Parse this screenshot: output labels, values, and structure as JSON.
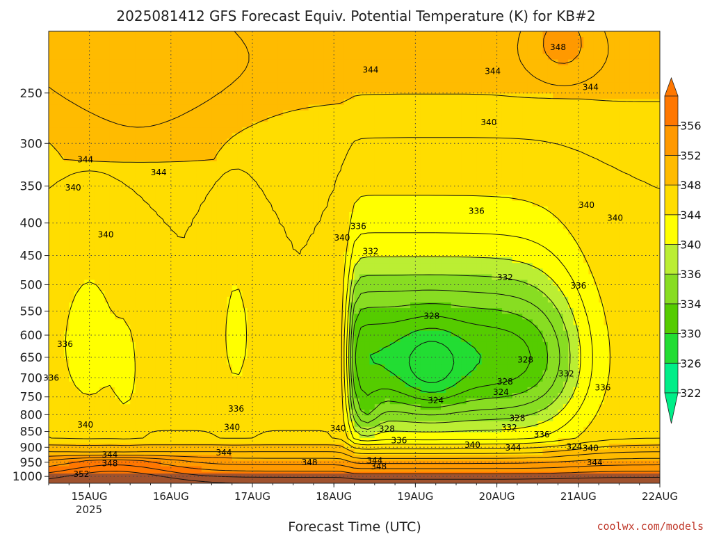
{
  "chart_data": {
    "type": "heatmap",
    "title": "2025081412 GFS Forecast Equiv. Potential Temperature (K) for KB#2",
    "xlabel": "Forecast Time (UTC)",
    "ylabel": "",
    "credit": "coolwx.com/models",
    "y_axis": {
      "scale": "log-pressure",
      "ticks": [
        "250",
        "300",
        "350",
        "400",
        "450",
        "500",
        "550",
        "600",
        "650",
        "700",
        "750",
        "800",
        "850",
        "900",
        "950",
        "1000"
      ],
      "range": [
        200,
        1025
      ]
    },
    "x_axis": {
      "ticks": [
        "15AUG",
        "16AUG",
        "17AUG",
        "18AUG",
        "19AUG",
        "20AUG",
        "21AUG",
        "22AUG"
      ],
      "first_tick_year": "2025",
      "range_days": [
        14.5,
        22.0
      ]
    },
    "colorbar": {
      "levels": [
        "322",
        "326",
        "330",
        "334",
        "336",
        "340",
        "344",
        "348",
        "352",
        "356"
      ],
      "colors": [
        "#00ee88",
        "#22dd33",
        "#55cc00",
        "#88dd22",
        "#bbee33",
        "#ffff00",
        "#ffdd00",
        "#ffbb00",
        "#ff9900",
        "#ff7700"
      ]
    },
    "contour_labels": [
      {
        "text": "348",
        "x": 18.55,
        "p": 965
      },
      {
        "text": "344",
        "x": 21.2,
        "p": 950
      },
      {
        "text": "348",
        "x": 20.75,
        "p": 212
      },
      {
        "text": "344",
        "x": 19.95,
        "p": 231
      },
      {
        "text": "344",
        "x": 21.15,
        "p": 245
      },
      {
        "text": "344",
        "x": 18.45,
        "p": 230
      },
      {
        "text": "340",
        "x": 19.9,
        "p": 278
      },
      {
        "text": "344",
        "x": 14.95,
        "p": 318
      },
      {
        "text": "344",
        "x": 15.85,
        "p": 333
      },
      {
        "text": "340",
        "x": 14.8,
        "p": 352
      },
      {
        "text": "336",
        "x": 18.3,
        "p": 405
      },
      {
        "text": "340",
        "x": 18.1,
        "p": 422
      },
      {
        "text": "336",
        "x": 19.75,
        "p": 383
      },
      {
        "text": "340",
        "x": 21.1,
        "p": 375
      },
      {
        "text": "340",
        "x": 21.45,
        "p": 393
      },
      {
        "text": "340",
        "x": 15.2,
        "p": 417
      },
      {
        "text": "332",
        "x": 18.45,
        "p": 443
      },
      {
        "text": "332",
        "x": 20.1,
        "p": 487
      },
      {
        "text": "336",
        "x": 21.0,
        "p": 502
      },
      {
        "text": "328",
        "x": 19.2,
        "p": 560
      },
      {
        "text": "336",
        "x": 14.7,
        "p": 620
      },
      {
        "text": "328",
        "x": 20.35,
        "p": 656
      },
      {
        "text": "336",
        "x": 14.53,
        "p": 700
      },
      {
        "text": "332",
        "x": 20.85,
        "p": 690
      },
      {
        "text": "328",
        "x": 20.1,
        "p": 710
      },
      {
        "text": "336",
        "x": 21.3,
        "p": 725
      },
      {
        "text": "324",
        "x": 20.05,
        "p": 737
      },
      {
        "text": "324",
        "x": 19.25,
        "p": 760
      },
      {
        "text": "336",
        "x": 16.8,
        "p": 783
      },
      {
        "text": "328",
        "x": 20.25,
        "p": 810
      },
      {
        "text": "340",
        "x": 14.95,
        "p": 830
      },
      {
        "text": "340",
        "x": 16.75,
        "p": 837
      },
      {
        "text": "340",
        "x": 18.05,
        "p": 840
      },
      {
        "text": "328",
        "x": 18.65,
        "p": 843
      },
      {
        "text": "332",
        "x": 20.15,
        "p": 838
      },
      {
        "text": "336",
        "x": 20.55,
        "p": 860
      },
      {
        "text": "336",
        "x": 18.8,
        "p": 878
      },
      {
        "text": "340",
        "x": 19.7,
        "p": 893
      },
      {
        "text": "344",
        "x": 20.2,
        "p": 902
      },
      {
        "text": "324",
        "x": 20.95,
        "p": 898
      },
      {
        "text": "340",
        "x": 21.15,
        "p": 903
      },
      {
        "text": "344",
        "x": 15.25,
        "p": 925
      },
      {
        "text": "344",
        "x": 16.65,
        "p": 918
      },
      {
        "text": "348",
        "x": 15.25,
        "p": 954
      },
      {
        "text": "348",
        "x": 17.7,
        "p": 950
      },
      {
        "text": "344",
        "x": 18.5,
        "p": 945
      },
      {
        "text": "352",
        "x": 14.9,
        "p": 992
      }
    ]
  }
}
